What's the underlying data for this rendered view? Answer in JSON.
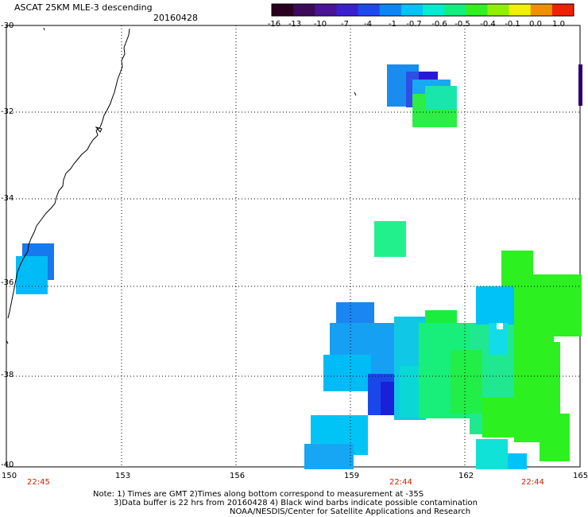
{
  "header": {
    "title": "ASCAT 25KM MLE-3 descending",
    "date": "20160428"
  },
  "colorbar": {
    "ticks": [
      "-16",
      "-13",
      "-10",
      "-7",
      "-4",
      "-1",
      "-0.7",
      "-0.6",
      "-0.5",
      "-0.4",
      "-0.1",
      "0.0",
      "1.0"
    ],
    "colors": [
      "#2a0020",
      "#3c0a5a",
      "#4a1496",
      "#3a20d0",
      "#1e48f0",
      "#0a86f6",
      "#00c4f4",
      "#00ecd0",
      "#10f080",
      "#30f020",
      "#90f000",
      "#f0f000",
      "#f09000",
      "#f02000"
    ]
  },
  "axes": {
    "lat_labels": [
      "-30",
      "-32",
      "-34",
      "-36",
      "-38",
      "-40"
    ],
    "lon_labels": [
      "150",
      "153",
      "156",
      "159",
      "162",
      "165"
    ],
    "time_labels": [
      "22:45",
      "22:44",
      "22:44"
    ]
  },
  "notes": {
    "line1": "Note: 1) Times are GMT 2)Times along bottom correspond to measurement at -35S",
    "line2": "3)Data buffer is 22 hrs from 20160428 4) Black wind barbs indicate possible contamination",
    "line3": "NOAA/NESDIS/Center for Satellite Applications and Research"
  }
}
